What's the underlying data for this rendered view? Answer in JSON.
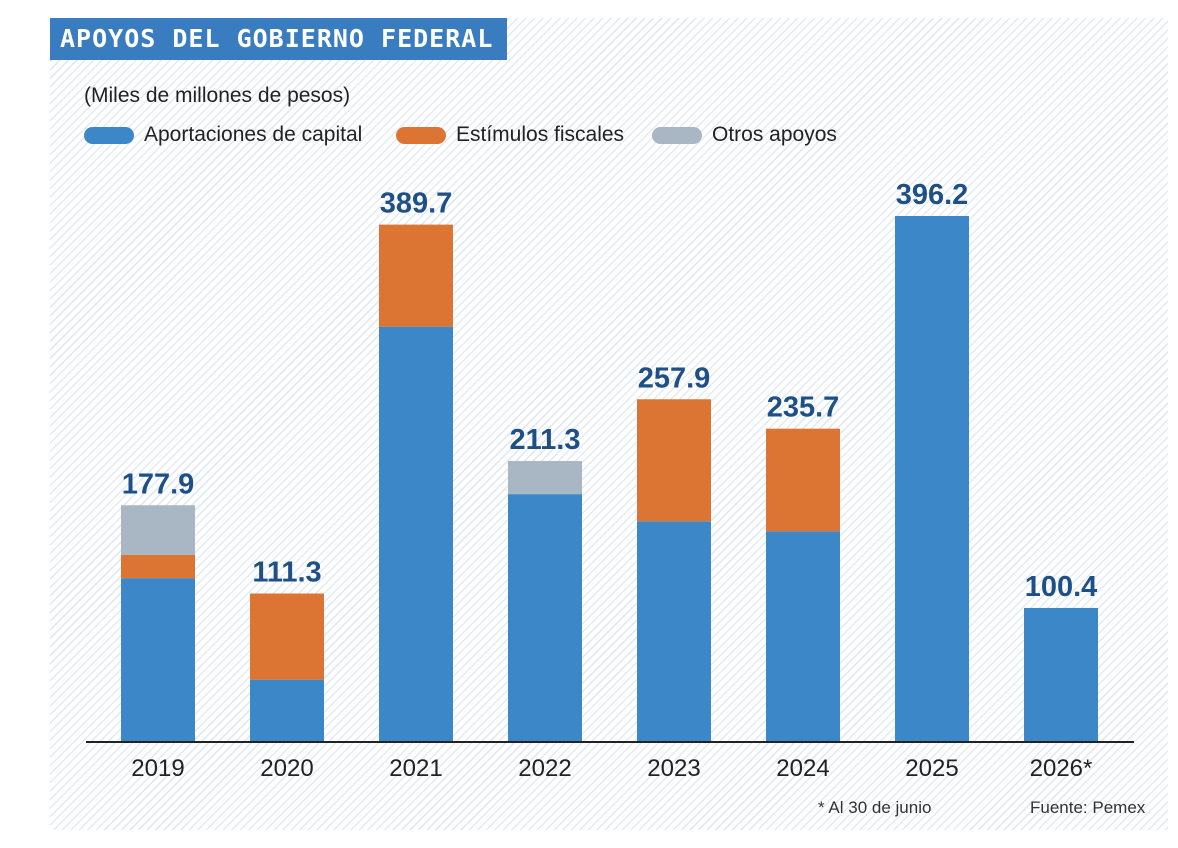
{
  "title": "APOYOS DEL GOBIERNO FEDERAL",
  "units": "(Miles de millones de pesos)",
  "colors": {
    "aportaciones": "#3b87c8",
    "estimulos": "#dc7434",
    "otros": "#a9b6c3",
    "title_bg": "#3a7cc0",
    "value_text": "#1f4f87"
  },
  "legend": [
    {
      "label": "Aportaciones de capital",
      "color": "#3b87c8"
    },
    {
      "label": "Estímulos fiscales",
      "color": "#dc7434"
    },
    {
      "label": "Otros apoyos",
      "color": "#a9b6c3"
    }
  ],
  "chart_data": {
    "type": "bar",
    "stacked": true,
    "categories": [
      "2019",
      "2020",
      "2021",
      "2022",
      "2023",
      "2024",
      "2025",
      "2026*"
    ],
    "series": [
      {
        "name": "Aportaciones de capital",
        "values": [
          122.9,
          46.3,
          312.7,
          186.3,
          165.8,
          158.3,
          396.2,
          100.4
        ]
      },
      {
        "name": "Estímulos fiscales",
        "values": [
          17.5,
          65.0,
          77.0,
          0,
          92.1,
          77.4,
          0,
          0
        ]
      },
      {
        "name": "Otros apoyos",
        "values": [
          37.5,
          0,
          0,
          25.0,
          0,
          0,
          0,
          0
        ]
      }
    ],
    "totals": [
      "177.9",
      "111.3",
      "389.7",
      "211.3",
      "257.9",
      "235.7",
      "396.2",
      "100.4"
    ],
    "ylim": [
      0,
      410
    ],
    "grid": false,
    "legend_position": "top-left"
  },
  "notes": {
    "footnote": "* Al 30 de junio",
    "source": "Fuente: Pemex"
  }
}
